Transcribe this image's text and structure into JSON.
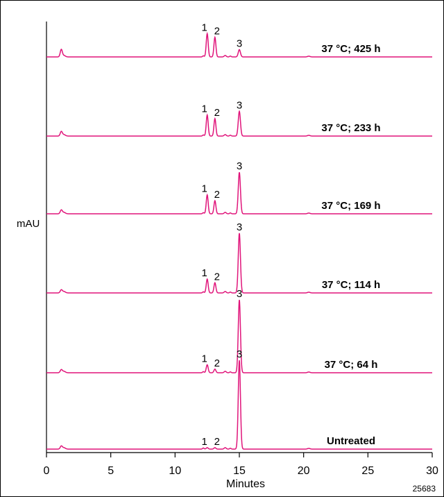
{
  "chart_data": {
    "type": "line",
    "ylabel": "mAU",
    "xlabel": "Minutes",
    "xlim": [
      0,
      30
    ],
    "x_ticks": [
      "0",
      "5",
      "10",
      "15",
      "20",
      "25",
      "30"
    ],
    "figure_id": "25683",
    "peaks": {
      "labels": [
        "1",
        "2",
        "3"
      ],
      "retention_min": [
        12.5,
        13.1,
        15.0
      ]
    },
    "series": [
      {
        "name": "37 °C; 425 h",
        "peak_heights": [
          0.32,
          0.27,
          0.1
        ],
        "solvent_peak": 0.1
      },
      {
        "name": "37 °C; 233 h",
        "peak_heights": [
          0.29,
          0.24,
          0.34
        ],
        "solvent_peak": 0.06
      },
      {
        "name": "37 °C; 169 h",
        "peak_heights": [
          0.26,
          0.18,
          0.57
        ],
        "solvent_peak": 0.05
      },
      {
        "name": "37 °C; 114 h",
        "peak_heights": [
          0.19,
          0.14,
          0.82
        ],
        "solvent_peak": 0.04
      },
      {
        "name": "37 °C; 64 h",
        "peak_heights": [
          0.11,
          0.05,
          1.0
        ],
        "solvent_peak": 0.04
      },
      {
        "name": "Untreated",
        "peak_heights": [
          0.02,
          0.02,
          1.22
        ],
        "solvent_peak": 0.04
      }
    ]
  },
  "colors": {
    "trace": "#e0147a",
    "axis": "#000000"
  }
}
